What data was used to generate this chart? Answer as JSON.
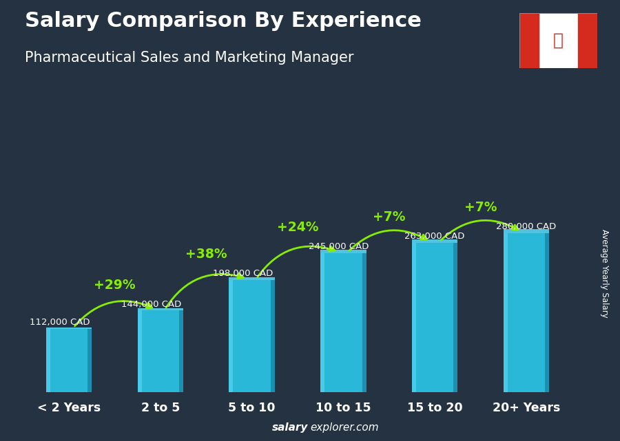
{
  "title": "Salary Comparison By Experience",
  "subtitle": "Pharmaceutical Sales and Marketing Manager",
  "categories": [
    "< 2 Years",
    "2 to 5",
    "5 to 10",
    "10 to 15",
    "15 to 20",
    "20+ Years"
  ],
  "values": [
    112000,
    144000,
    198000,
    245000,
    263000,
    280000
  ],
  "labels": [
    "112,000 CAD",
    "144,000 CAD",
    "198,000 CAD",
    "245,000 CAD",
    "263,000 CAD",
    "280,000 CAD"
  ],
  "pct_changes": [
    "+29%",
    "+38%",
    "+24%",
    "+7%",
    "+7%"
  ],
  "bar_face_color": "#29b8d8",
  "bar_light_color": "#55d4f0",
  "bar_dark_color": "#1a8aaa",
  "bar_top_color": "#40c8e8",
  "bg_color": "#2a3545",
  "title_color": "#ffffff",
  "subtitle_color": "#ffffff",
  "label_color": "#ffffff",
  "pct_color": "#88ee00",
  "xtick_color": "#ffffff",
  "ylabel": "Average Yearly Salary",
  "footer_salary": "salary",
  "footer_rest": "explorer.com"
}
